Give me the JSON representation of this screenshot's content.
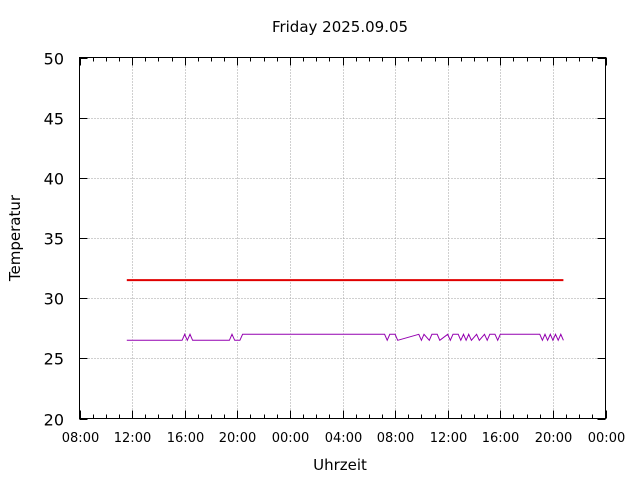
{
  "chart_data": {
    "type": "line",
    "title": "Friday 2025.09.05",
    "xlabel": "Uhrzeit",
    "ylabel": "Temperatur",
    "ylim": [
      20,
      50
    ],
    "yticks": [
      20,
      25,
      30,
      35,
      40,
      45,
      50
    ],
    "xlim": [
      "2025-09-05 08:00",
      "2025-09-07 00:00"
    ],
    "xticks": [
      "08:00",
      "12:00",
      "16:00",
      "20:00",
      "00:00",
      "04:00",
      "08:00",
      "12:00",
      "16:00",
      "20:00",
      "00:00"
    ],
    "grid": true,
    "legend": "none",
    "series": [
      {
        "color": "#e00000",
        "x": [
          "2025-09-05 11:36",
          "2025-09-06 20:48"
        ],
        "y": [
          31.5,
          31.5
        ]
      },
      {
        "color": "#9400b0",
        "x": [
          "2025-09-05 11:36",
          "2025-09-05 15:48",
          "2025-09-05 16:00",
          "2025-09-05 16:12",
          "2025-09-05 16:24",
          "2025-09-05 16:36",
          "2025-09-05 19:24",
          "2025-09-05 19:36",
          "2025-09-05 19:48",
          "2025-09-05 20:12",
          "2025-09-05 20:24",
          "2025-09-06 07:12",
          "2025-09-06 07:24",
          "2025-09-06 07:36",
          "2025-09-06 08:00",
          "2025-09-06 08:12",
          "2025-09-06 09:48",
          "2025-09-06 10:00",
          "2025-09-06 10:12",
          "2025-09-06 10:36",
          "2025-09-06 10:48",
          "2025-09-06 11:12",
          "2025-09-06 11:24",
          "2025-09-06 12:00",
          "2025-09-06 12:12",
          "2025-09-06 12:24",
          "2025-09-06 12:48",
          "2025-09-06 13:00",
          "2025-09-06 13:12",
          "2025-09-06 13:24",
          "2025-09-06 13:36",
          "2025-09-06 13:48",
          "2025-09-06 14:12",
          "2025-09-06 14:24",
          "2025-09-06 14:48",
          "2025-09-06 15:00",
          "2025-09-06 15:12",
          "2025-09-06 15:36",
          "2025-09-06 15:48",
          "2025-09-06 16:00",
          "2025-09-06 19:00",
          "2025-09-06 19:12",
          "2025-09-06 19:24",
          "2025-09-06 19:36",
          "2025-09-06 19:48",
          "2025-09-06 20:00",
          "2025-09-06 20:12",
          "2025-09-06 20:24",
          "2025-09-06 20:36",
          "2025-09-06 20:48"
        ],
        "y": [
          26.5,
          26.5,
          27.0,
          26.5,
          27.0,
          26.5,
          26.5,
          27.0,
          26.5,
          26.5,
          27.0,
          27.0,
          26.5,
          27.0,
          27.0,
          26.5,
          27.0,
          26.5,
          27.0,
          26.5,
          27.0,
          27.0,
          26.5,
          27.0,
          26.5,
          27.0,
          27.0,
          26.5,
          27.0,
          26.5,
          27.0,
          26.5,
          27.0,
          26.5,
          27.0,
          26.5,
          27.0,
          27.0,
          26.5,
          27.0,
          27.0,
          26.5,
          27.0,
          26.5,
          27.0,
          26.5,
          27.0,
          26.5,
          27.0,
          26.5
        ]
      }
    ]
  }
}
